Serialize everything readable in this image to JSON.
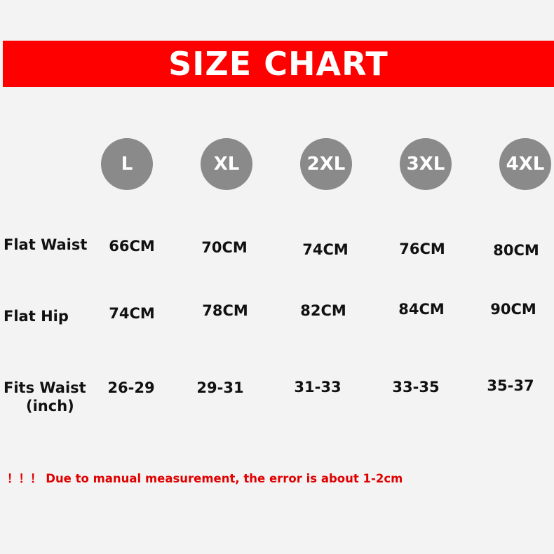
{
  "title": "SIZE CHART",
  "colors": {
    "banner": "#ff0000",
    "circle": "#8a8a8a",
    "note": "#e00000"
  },
  "sizes": [
    "L",
    "XL",
    "2XL",
    "3XL",
    "4XL"
  ],
  "rows": [
    {
      "label": "Flat Waist",
      "values": [
        "66CM",
        "70CM",
        "74CM",
        "76CM",
        "80CM"
      ]
    },
    {
      "label": "Flat Hip",
      "values": [
        "74CM",
        "78CM",
        "82CM",
        "84CM",
        "90CM"
      ]
    },
    {
      "label": "Fits Waist",
      "sublabel": "(inch)",
      "values": [
        "26-29",
        "29-31",
        "31-33",
        "33-35",
        "35-37"
      ]
    }
  ],
  "note": "！！！ Due to manual measurement, the error is about 1-2cm"
}
